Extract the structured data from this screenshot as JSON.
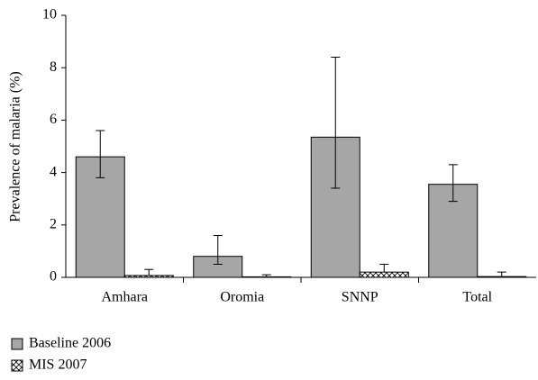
{
  "chart_data": {
    "type": "bar",
    "y_label": "Prevalence of malaria (%)",
    "categories": [
      "Amhara",
      "Oromia",
      "SNNP",
      "Total"
    ],
    "series": [
      {
        "name": "Baseline 2006",
        "color": "#a6a6a6",
        "pattern": "solid",
        "values": [
          4.6,
          0.8,
          5.35,
          3.55
        ],
        "lower": [
          3.8,
          0.5,
          3.4,
          2.9
        ],
        "upper": [
          5.6,
          1.6,
          8.4,
          4.3
        ]
      },
      {
        "name": "MIS 2007",
        "color": "#ffffff",
        "pattern": "crosshatch",
        "values": [
          0.07,
          0.02,
          0.2,
          0.03
        ],
        "lower": [
          null,
          null,
          null,
          null
        ],
        "upper": [
          0.3,
          0.1,
          0.5,
          0.2
        ]
      }
    ],
    "ylim": [
      0,
      10
    ],
    "yticks": [
      0,
      2,
      4,
      6,
      8,
      10
    ],
    "legend": "bottom-left"
  }
}
